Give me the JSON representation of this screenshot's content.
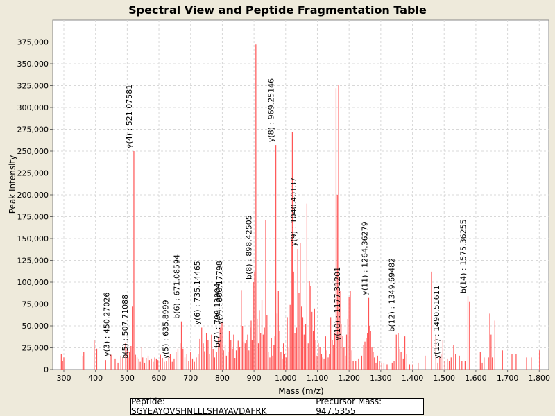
{
  "chart_data": {
    "type": "bar",
    "title": "Spectral View and Peptide Fragmentation Table",
    "xlabel": "Mass (m/z)",
    "ylabel": "Peak Intensity",
    "xlim": [
      265,
      1830
    ],
    "ylim": [
      0,
      400000
    ],
    "x_ticks": [
      300,
      400,
      500,
      600,
      700,
      800,
      900,
      1000,
      1100,
      1200,
      1300,
      1400,
      1500,
      1600,
      1700,
      1800
    ],
    "x_tick_labels": [
      "300",
      "400",
      "500",
      "600",
      "700",
      "800",
      "900",
      "1,000",
      "1,100",
      "1,200",
      "1,300",
      "1,400",
      "1,500",
      "1,600",
      "1,700",
      "1,800"
    ],
    "y_ticks": [
      0,
      25000,
      50000,
      75000,
      100000,
      125000,
      150000,
      175000,
      200000,
      225000,
      250000,
      275000,
      300000,
      325000,
      350000,
      375000
    ],
    "y_tick_labels": [
      "0",
      "25,000",
      "50,000",
      "75,000",
      "100,000",
      "125,000",
      "150,000",
      "175,000",
      "200,000",
      "225,000",
      "250,000",
      "275,000",
      "300,000",
      "325,000",
      "350,000",
      "375,000"
    ],
    "grid": true,
    "colors": {
      "peak": "#ff5555",
      "grid": "#d8d8d8",
      "plot_bg": "#ffffff",
      "page_bg": "#eeeadb"
    },
    "peaks": [
      [
        292,
        18000
      ],
      [
        296,
        10000
      ],
      [
        300,
        14000
      ],
      [
        360,
        15000
      ],
      [
        363,
        20000
      ],
      [
        396,
        34000
      ],
      [
        404,
        24000
      ],
      [
        432,
        11000
      ],
      [
        449,
        17000
      ],
      [
        462,
        12000
      ],
      [
        471,
        8000
      ],
      [
        480,
        16000
      ],
      [
        486,
        13000
      ],
      [
        495,
        31000
      ],
      [
        500,
        24000
      ],
      [
        503,
        14000
      ],
      [
        507,
        20000
      ],
      [
        512,
        27000
      ],
      [
        516,
        72000
      ],
      [
        521,
        250000
      ],
      [
        526,
        17000
      ],
      [
        531,
        14000
      ],
      [
        537,
        12000
      ],
      [
        541,
        9000
      ],
      [
        546,
        26000
      ],
      [
        549,
        14000
      ],
      [
        555,
        8000
      ],
      [
        560,
        13000
      ],
      [
        566,
        16000
      ],
      [
        570,
        11000
      ],
      [
        576,
        12000
      ],
      [
        582,
        9000
      ],
      [
        587,
        14000
      ],
      [
        592,
        12000
      ],
      [
        597,
        11000
      ],
      [
        605,
        17000
      ],
      [
        611,
        13000
      ],
      [
        617,
        9000
      ],
      [
        624,
        10000
      ],
      [
        631,
        14000
      ],
      [
        636,
        18000
      ],
      [
        642,
        9000
      ],
      [
        648,
        12000
      ],
      [
        654,
        20000
      ],
      [
        660,
        24000
      ],
      [
        667,
        30000
      ],
      [
        671,
        55000
      ],
      [
        676,
        24000
      ],
      [
        682,
        14000
      ],
      [
        688,
        18000
      ],
      [
        694,
        10000
      ],
      [
        700,
        20000
      ],
      [
        706,
        12000
      ],
      [
        712,
        9000
      ],
      [
        718,
        14000
      ],
      [
        724,
        18000
      ],
      [
        729,
        35000
      ],
      [
        735,
        48000
      ],
      [
        740,
        30000
      ],
      [
        744,
        21000
      ],
      [
        750,
        42000
      ],
      [
        755,
        34000
      ],
      [
        760,
        18000
      ],
      [
        766,
        40000
      ],
      [
        771,
        23000
      ],
      [
        776,
        14000
      ],
      [
        782,
        20000
      ],
      [
        788,
        37000
      ],
      [
        793,
        48000
      ],
      [
        799,
        54000
      ],
      [
        804,
        22000
      ],
      [
        809,
        28000
      ],
      [
        813,
        16000
      ],
      [
        818,
        20000
      ],
      [
        822,
        44000
      ],
      [
        827,
        34000
      ],
      [
        832,
        24000
      ],
      [
        836,
        40000
      ],
      [
        840,
        13000
      ],
      [
        844,
        22000
      ],
      [
        850,
        33000
      ],
      [
        855,
        26000
      ],
      [
        860,
        91000
      ],
      [
        864,
        50000
      ],
      [
        868,
        32000
      ],
      [
        872,
        30000
      ],
      [
        876,
        34000
      ],
      [
        880,
        40000
      ],
      [
        884,
        22000
      ],
      [
        888,
        48000
      ],
      [
        891,
        56000
      ],
      [
        894,
        34000
      ],
      [
        898,
        100000
      ],
      [
        902,
        112000
      ],
      [
        906,
        372000
      ],
      [
        910,
        58000
      ],
      [
        914,
        30000
      ],
      [
        917,
        68000
      ],
      [
        921,
        42000
      ],
      [
        925,
        80000
      ],
      [
        929,
        40000
      ],
      [
        933,
        48000
      ],
      [
        937,
        171000
      ],
      [
        941,
        62000
      ],
      [
        945,
        20000
      ],
      [
        950,
        14000
      ],
      [
        955,
        36000
      ],
      [
        959,
        16000
      ],
      [
        963,
        28000
      ],
      [
        966,
        38000
      ],
      [
        969,
        257000
      ],
      [
        973,
        64000
      ],
      [
        977,
        90000
      ],
      [
        981,
        44000
      ],
      [
        985,
        20000
      ],
      [
        989,
        12000
      ],
      [
        993,
        30000
      ],
      [
        997,
        18000
      ],
      [
        1001,
        14000
      ],
      [
        1005,
        60000
      ],
      [
        1010,
        26000
      ],
      [
        1014,
        74000
      ],
      [
        1018,
        150000
      ],
      [
        1021,
        272000
      ],
      [
        1025,
        112000
      ],
      [
        1029,
        42000
      ],
      [
        1034,
        48000
      ],
      [
        1038,
        138000
      ],
      [
        1042,
        88000
      ],
      [
        1046,
        145000
      ],
      [
        1050,
        72000
      ],
      [
        1054,
        60000
      ],
      [
        1058,
        40000
      ],
      [
        1063,
        52000
      ],
      [
        1067,
        190000
      ],
      [
        1071,
        30000
      ],
      [
        1075,
        101000
      ],
      [
        1079,
        96000
      ],
      [
        1083,
        66000
      ],
      [
        1087,
        44000
      ],
      [
        1091,
        70000
      ],
      [
        1095,
        34000
      ],
      [
        1099,
        16000
      ],
      [
        1103,
        30000
      ],
      [
        1108,
        26000
      ],
      [
        1113,
        18000
      ],
      [
        1117,
        14000
      ],
      [
        1121,
        12000
      ],
      [
        1126,
        38000
      ],
      [
        1130,
        22000
      ],
      [
        1134,
        14000
      ],
      [
        1138,
        18000
      ],
      [
        1142,
        60000
      ],
      [
        1147,
        34000
      ],
      [
        1151,
        28000
      ],
      [
        1155,
        42000
      ],
      [
        1159,
        322000
      ],
      [
        1163,
        200000
      ],
      [
        1167,
        326000
      ],
      [
        1171,
        90000
      ],
      [
        1175,
        52000
      ],
      [
        1180,
        38000
      ],
      [
        1184,
        26000
      ],
      [
        1188,
        16000
      ],
      [
        1192,
        40000
      ],
      [
        1196,
        58000
      ],
      [
        1200,
        83000
      ],
      [
        1204,
        90000
      ],
      [
        1209,
        22000
      ],
      [
        1213,
        10000
      ],
      [
        1221,
        10000
      ],
      [
        1230,
        12000
      ],
      [
        1240,
        16000
      ],
      [
        1246,
        28000
      ],
      [
        1250,
        32000
      ],
      [
        1254,
        36000
      ],
      [
        1258,
        42000
      ],
      [
        1262,
        82000
      ],
      [
        1265,
        50000
      ],
      [
        1268,
        44000
      ],
      [
        1272,
        26000
      ],
      [
        1276,
        20000
      ],
      [
        1280,
        14000
      ],
      [
        1285,
        8000
      ],
      [
        1290,
        16000
      ],
      [
        1296,
        10000
      ],
      [
        1303,
        8000
      ],
      [
        1310,
        8000
      ],
      [
        1320,
        6000
      ],
      [
        1336,
        8000
      ],
      [
        1342,
        10000
      ],
      [
        1349,
        40000
      ],
      [
        1355,
        42000
      ],
      [
        1360,
        24000
      ],
      [
        1364,
        20000
      ],
      [
        1371,
        12000
      ],
      [
        1376,
        38000
      ],
      [
        1382,
        18000
      ],
      [
        1391,
        6000
      ],
      [
        1401,
        6000
      ],
      [
        1418,
        8000
      ],
      [
        1440,
        16000
      ],
      [
        1460,
        112000
      ],
      [
        1474,
        40000
      ],
      [
        1480,
        8000
      ],
      [
        1486,
        14000
      ],
      [
        1490,
        18000
      ],
      [
        1496,
        34000
      ],
      [
        1502,
        10000
      ],
      [
        1510,
        12000
      ],
      [
        1516,
        10000
      ],
      [
        1522,
        14000
      ],
      [
        1530,
        28000
      ],
      [
        1536,
        18000
      ],
      [
        1548,
        16000
      ],
      [
        1556,
        10000
      ],
      [
        1566,
        10000
      ],
      [
        1575,
        84000
      ],
      [
        1580,
        78000
      ],
      [
        1614,
        20000
      ],
      [
        1620,
        8000
      ],
      [
        1626,
        14000
      ],
      [
        1640,
        14000
      ],
      [
        1644,
        64000
      ],
      [
        1648,
        40000
      ],
      [
        1652,
        14000
      ],
      [
        1660,
        56000
      ],
      [
        1684,
        22000
      ],
      [
        1714,
        18000
      ],
      [
        1727,
        18000
      ],
      [
        1760,
        14000
      ],
      [
        1775,
        14000
      ],
      [
        1801,
        22000
      ]
    ],
    "annotations": [
      {
        "label": "y(3) : 450.27026",
        "x": 450.27026,
        "y": 12000
      },
      {
        "label": "b(5) : 507.71088",
        "x": 507.71088,
        "y": 9000
      },
      {
        "label": "y(4) : 521.07581",
        "x": 521.07581,
        "y": 250000
      },
      {
        "label": "y(5) : 635.8999",
        "x": 635.8999,
        "y": 9000
      },
      {
        "label": "b(6) : 671.08594",
        "x": 671.08594,
        "y": 55000
      },
      {
        "label": "y(6) : 735.14465",
        "x": 735.14465,
        "y": 48000
      },
      {
        "label": "b(7) : 799.13904",
        "x": 799.13904,
        "y": 22000
      },
      {
        "label": "y(7) : 806.17798",
        "x": 806.17798,
        "y": 48000
      },
      {
        "label": "b(8) : 898.42505",
        "x": 898.42505,
        "y": 100000
      },
      {
        "label": "y(8) : 969.25146",
        "x": 969.25146,
        "y": 257000
      },
      {
        "label": "y(9) : 1040.40137",
        "x": 1040.40137,
        "y": 138000
      },
      {
        "label": "y(10) : 1177.31201",
        "x": 1177.31201,
        "y": 30000
      },
      {
        "label": "y(11) : 1264.36279",
        "x": 1264.36279,
        "y": 82000
      },
      {
        "label": "b(12) : 1349.69482",
        "x": 1349.69482,
        "y": 40000
      },
      {
        "label": "y(13) : 1490.51611",
        "x": 1490.51611,
        "y": 9000
      },
      {
        "label": "b(14) : 1575.36255",
        "x": 1575.36255,
        "y": 84000
      }
    ]
  },
  "footer": {
    "peptide_text": "Peptide: SGYEAYQVSHNLLLSHAYAVDAFRK",
    "precursor_text": "Precursor Mass: 947.5355"
  }
}
